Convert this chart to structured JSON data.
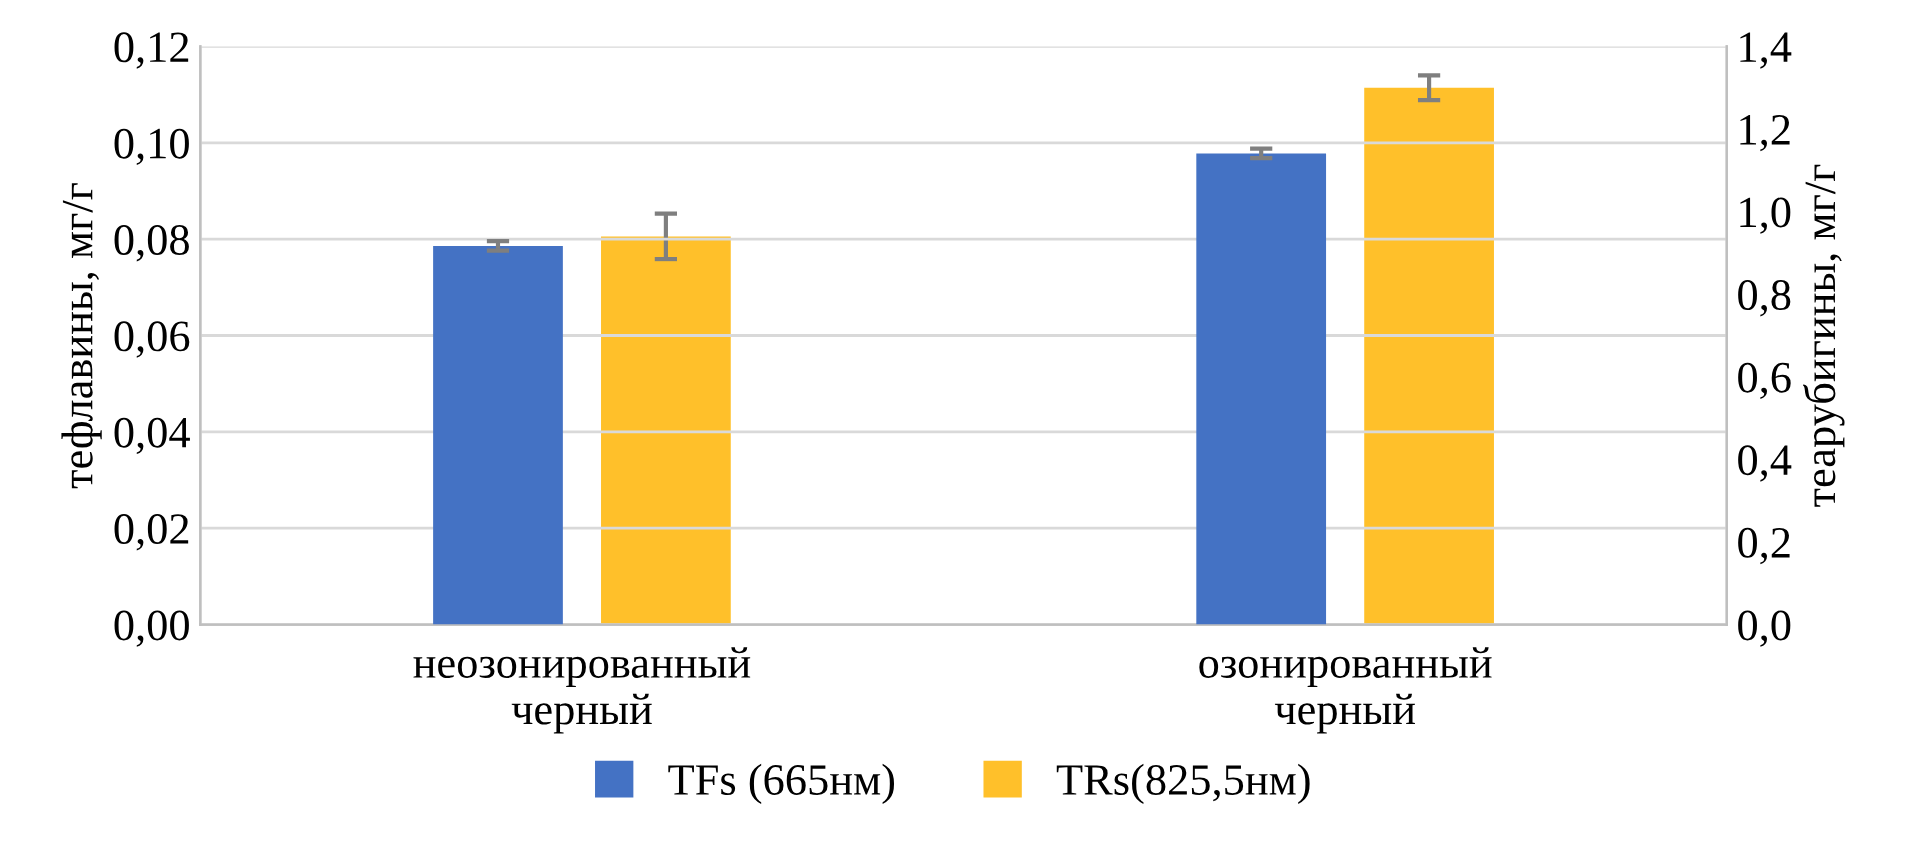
{
  "chart_data": {
    "type": "bar",
    "categories": [
      "неозонированный\nчерный",
      "озонированный\nчерный"
    ],
    "ylabel": "тефлавины, мг/г",
    "y2label": "теарубигины, мг/г",
    "series": [
      {
        "name": "TFs (665нм)",
        "color": "#4472c4",
        "values": [
          0.0786,
          0.0978
        ],
        "errors": [
          0.001,
          0.001
        ]
      },
      {
        "name": "TRs(825,5нм)",
        "color": "#ffc02a",
        "values": [
          0.94,
          1.3
        ],
        "errors": [
          0.055,
          0.03
        ],
        "axis": "y2"
      }
    ],
    "ylim": [
      0,
      0.12
    ],
    "yticks": [
      {
        "value": 0,
        "label": "0,00"
      },
      {
        "value": 0.02,
        "label": "0,02"
      },
      {
        "value": 0.04,
        "label": "0,04"
      },
      {
        "value": 0.06,
        "label": "0,06"
      },
      {
        "value": 0.08,
        "label": "0,08"
      },
      {
        "value": 0.1,
        "label": "0,10"
      },
      {
        "value": 0.12,
        "label": "0,12"
      }
    ],
    "y2lim": [
      0,
      1.4
    ],
    "y2ticks": [
      {
        "value": 0,
        "label": "0,0"
      },
      {
        "value": 0.2,
        "label": "0,2"
      },
      {
        "value": 0.4,
        "label": "0,4"
      },
      {
        "value": 0.6,
        "label": "0,6"
      },
      {
        "value": 0.8,
        "label": "0,8"
      },
      {
        "value": 1.0,
        "label": "1,0"
      },
      {
        "value": 1.2,
        "label": "1,2"
      },
      {
        "value": 1.4,
        "label": "1,4"
      }
    ],
    "grid": "y",
    "legend": "bottom"
  }
}
